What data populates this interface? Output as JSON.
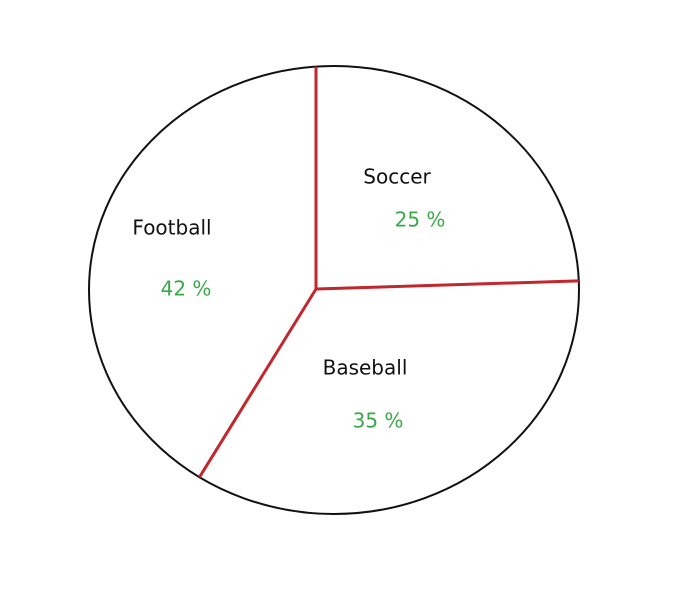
{
  "chart_data": {
    "type": "pie",
    "categories": [
      "Soccer",
      "Baseball",
      "Football"
    ],
    "values": [
      25,
      35,
      42
    ],
    "value_labels": [
      "25 %",
      "35 %",
      "42 %"
    ]
  }
}
